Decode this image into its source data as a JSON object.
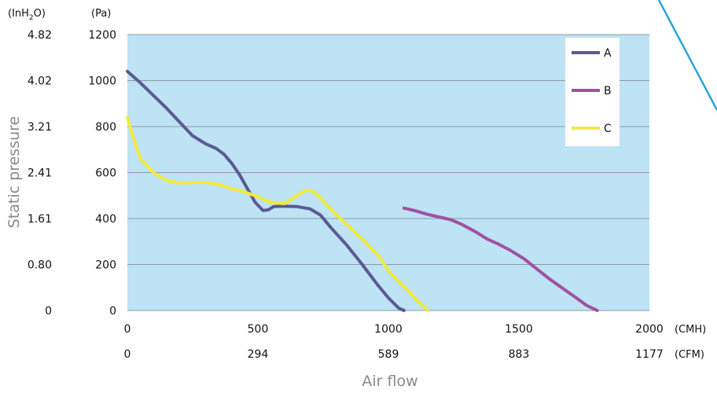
{
  "chart_data": {
    "type": "line",
    "xlabel": "Air flow",
    "ylabel": "Static pressure",
    "y_units": {
      "primary": "(Pa)",
      "secondary_prefix": "(InH",
      "secondary_sub": "2",
      "secondary_suffix": "O)"
    },
    "x_units": {
      "primary": "(CMH)",
      "secondary": "(CFM)"
    },
    "xlim": [
      0,
      2000
    ],
    "ylim": [
      0,
      1200
    ],
    "x_ticks": [
      0,
      500,
      1000,
      1500,
      2000
    ],
    "x_tick_labels": [
      "0",
      "500",
      "1000",
      "1500",
      "2000"
    ],
    "x_secondary_tick_labels": [
      "0",
      "294",
      "589",
      "883",
      "1177"
    ],
    "y_ticks": [
      0,
      200,
      400,
      600,
      800,
      1000,
      1200
    ],
    "y_tick_labels": [
      "0",
      "200",
      "400",
      "600",
      "800",
      "1000",
      "1200"
    ],
    "y_secondary_tick_labels": [
      "0",
      "0.80",
      "1.61",
      "2.41",
      "3.21",
      "4.02",
      "4.82"
    ],
    "grid": true,
    "legend_position": "top-right",
    "plot_background": "#bde3f5",
    "series": [
      {
        "name": "A",
        "color": "#5b5a94",
        "x": [
          0,
          50,
          100,
          150,
          200,
          250,
          300,
          340,
          370,
          400,
          430,
          460,
          490,
          520,
          540,
          560,
          590,
          650,
          700,
          740,
          780,
          840,
          900,
          960,
          1000,
          1040,
          1060
        ],
        "y": [
          1040,
          990,
          935,
          880,
          820,
          760,
          725,
          705,
          680,
          640,
          590,
          530,
          470,
          435,
          438,
          452,
          454,
          452,
          442,
          415,
          360,
          285,
          200,
          110,
          55,
          10,
          0
        ]
      },
      {
        "name": "B",
        "color": "#a052a0",
        "x": [
          1060,
          1100,
          1150,
          1200,
          1240,
          1280,
          1330,
          1380,
          1420,
          1470,
          1520,
          1570,
          1620,
          1670,
          1720,
          1760,
          1800
        ],
        "y": [
          445,
          435,
          418,
          405,
          395,
          375,
          345,
          310,
          290,
          260,
          225,
          180,
          135,
          95,
          55,
          22,
          0
        ]
      },
      {
        "name": "C",
        "color": "#f3e93d",
        "x": [
          0,
          20,
          50,
          100,
          150,
          200,
          250,
          300,
          350,
          400,
          450,
          500,
          550,
          600,
          650,
          680,
          710,
          740,
          780,
          830,
          900,
          960,
          1010,
          1060,
          1110,
          1150
        ],
        "y": [
          840,
          760,
          660,
          600,
          565,
          555,
          556,
          558,
          548,
          530,
          515,
          495,
          470,
          465,
          500,
          522,
          520,
          490,
          440,
          385,
          310,
          240,
          160,
          105,
          45,
          0
        ]
      }
    ]
  }
}
